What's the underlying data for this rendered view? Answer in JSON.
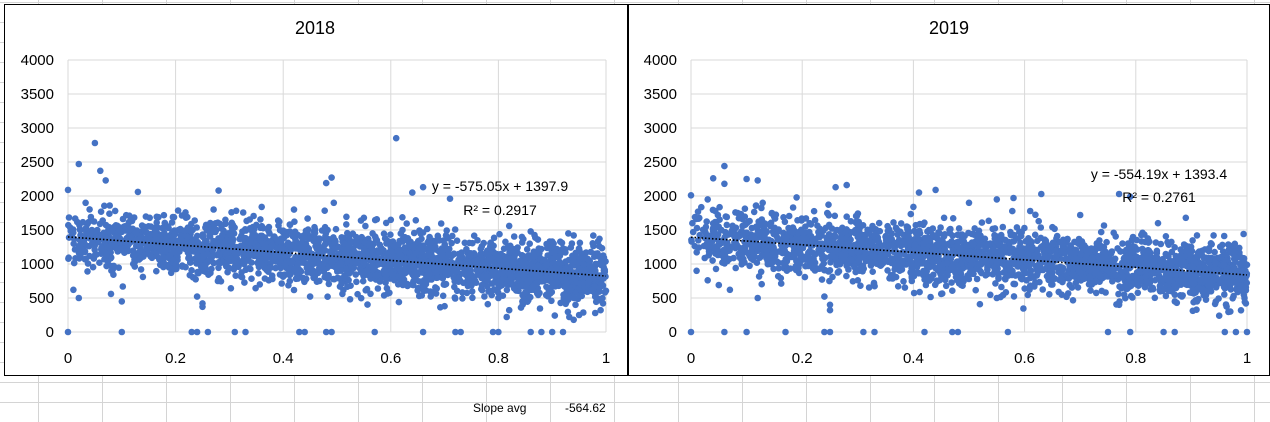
{
  "colors": {
    "point": "#4472C4",
    "gridline": "#d9d9d9",
    "trendline": "#000000",
    "text": "#000000"
  },
  "sheet": {
    "slope_label": "Slope avg",
    "slope_value": "-564.62"
  },
  "chart_data": [
    {
      "type": "scatter",
      "title": "2018",
      "xlabel": "",
      "ylabel": "",
      "xlim": [
        0,
        1
      ],
      "ylim": [
        0,
        4000
      ],
      "x_ticks": [
        "0",
        "0.2",
        "0.4",
        "0.6",
        "0.8",
        "1"
      ],
      "y_ticks": [
        "0",
        "500",
        "1000",
        "1500",
        "2000",
        "2500",
        "3000",
        "3500",
        "4000"
      ],
      "grid": true,
      "trendline": {
        "slope": -575.05,
        "intercept": 1397.9,
        "r_squared": 0.2917,
        "style": "dotted",
        "equation_label": "y = -575.05x + 1397.9",
        "r2_label": "R² = 0.2917"
      },
      "series": [
        {
          "name": "2018",
          "points": [
            [
              0.0,
              2090
            ],
            [
              0.02,
              2470
            ],
            [
              0.05,
              2780
            ],
            [
              0.06,
              2370
            ],
            [
              0.07,
              2230
            ],
            [
              0.13,
              2060
            ],
            [
              0.28,
              2080
            ],
            [
              0.48,
              2190
            ],
            [
              0.49,
              2270
            ],
            [
              0.61,
              2850
            ],
            [
              0.64,
              2050
            ],
            [
              0.66,
              2130
            ],
            [
              0.71,
              1960
            ],
            [
              0.0,
              0
            ],
            [
              0.1,
              0
            ],
            [
              0.23,
              0
            ],
            [
              0.24,
              0
            ],
            [
              0.26,
              0
            ],
            [
              0.31,
              0
            ],
            [
              0.33,
              0
            ],
            [
              0.43,
              0
            ],
            [
              0.44,
              0
            ],
            [
              0.48,
              0
            ],
            [
              0.49,
              0
            ],
            [
              0.57,
              0
            ],
            [
              0.66,
              0
            ],
            [
              0.72,
              0
            ],
            [
              0.73,
              0
            ],
            [
              0.79,
              0
            ],
            [
              0.8,
              0
            ],
            [
              0.86,
              0
            ],
            [
              0.88,
              0
            ],
            [
              0.9,
              0
            ],
            [
              0.92,
              0
            ],
            [
              0.01,
              620
            ],
            [
              0.02,
              500
            ],
            [
              0.08,
              560
            ],
            [
              0.1,
              450
            ],
            [
              0.24,
              520
            ],
            [
              0.25,
              420
            ],
            [
              0.25,
              370
            ],
            [
              0.38,
              780
            ],
            [
              0.45,
              520
            ],
            [
              0.51,
              560
            ],
            [
              0.7,
              380
            ],
            [
              0.82,
              320
            ],
            [
              0.94,
              180
            ],
            [
              0.95,
              250
            ],
            [
              0.98,
              280
            ],
            [
              0.99,
              320
            ],
            [
              0.36,
              1840
            ],
            [
              0.42,
              1800
            ],
            [
              0.55,
              1680
            ],
            [
              0.6,
              1650
            ],
            [
              0.82,
              1560
            ],
            [
              0.86,
              1480
            ],
            [
              0.9,
              1330
            ],
            [
              0.93,
              1450
            ],
            [
              0.94,
              1420
            ]
          ]
        }
      ]
    },
    {
      "type": "scatter",
      "title": "2019",
      "xlabel": "",
      "ylabel": "",
      "xlim": [
        0,
        1
      ],
      "ylim": [
        0,
        4000
      ],
      "x_ticks": [
        "0",
        "0.2",
        "0.4",
        "0.6",
        "0.8",
        "1"
      ],
      "y_ticks": [
        "0",
        "500",
        "1000",
        "1500",
        "2000",
        "2500",
        "3000",
        "3500",
        "4000"
      ],
      "grid": true,
      "trendline": {
        "slope": -554.19,
        "intercept": 1393.4,
        "r_squared": 0.2761,
        "style": "dotted",
        "equation_label": "y = -554.19x + 1393.4",
        "r2_label": "R² = 0.2761"
      },
      "series": [
        {
          "name": "2019",
          "points": [
            [
              0.0,
              2010
            ],
            [
              0.03,
              1950
            ],
            [
              0.04,
              2260
            ],
            [
              0.06,
              2440
            ],
            [
              0.06,
              2180
            ],
            [
              0.1,
              2250
            ],
            [
              0.12,
              2230
            ],
            [
              0.19,
              1980
            ],
            [
              0.26,
              2130
            ],
            [
              0.28,
              2160
            ],
            [
              0.41,
              2050
            ],
            [
              0.44,
              2090
            ],
            [
              0.55,
              1950
            ],
            [
              0.58,
              1970
            ],
            [
              0.63,
              2030
            ],
            [
              0.77,
              2030
            ],
            [
              0.79,
              1990
            ],
            [
              0.89,
              1680
            ],
            [
              0.0,
              0
            ],
            [
              0.06,
              0
            ],
            [
              0.1,
              0
            ],
            [
              0.17,
              0
            ],
            [
              0.24,
              0
            ],
            [
              0.25,
              0
            ],
            [
              0.31,
              0
            ],
            [
              0.33,
              0
            ],
            [
              0.42,
              0
            ],
            [
              0.47,
              0
            ],
            [
              0.48,
              0
            ],
            [
              0.57,
              0
            ],
            [
              0.75,
              0
            ],
            [
              0.79,
              0
            ],
            [
              0.85,
              0
            ],
            [
              0.87,
              0
            ],
            [
              0.96,
              0
            ],
            [
              0.98,
              0
            ],
            [
              1.0,
              0
            ],
            [
              0.01,
              900
            ],
            [
              0.03,
              760
            ],
            [
              0.05,
              690
            ],
            [
              0.07,
              620
            ],
            [
              0.12,
              500
            ],
            [
              0.24,
              520
            ],
            [
              0.25,
              400
            ],
            [
              0.25,
              320
            ],
            [
              0.3,
              760
            ],
            [
              0.45,
              560
            ],
            [
              0.55,
              500
            ],
            [
              0.77,
              400
            ],
            [
              0.88,
              540
            ],
            [
              0.91,
              450
            ],
            [
              0.95,
              240
            ],
            [
              0.97,
              300
            ],
            [
              0.4,
              1840
            ],
            [
              0.5,
              1900
            ],
            [
              0.61,
              1780
            ],
            [
              0.7,
              1720
            ],
            [
              0.84,
              1600
            ],
            [
              0.91,
              1420
            ],
            [
              0.94,
              1420
            ]
          ]
        }
      ]
    }
  ]
}
